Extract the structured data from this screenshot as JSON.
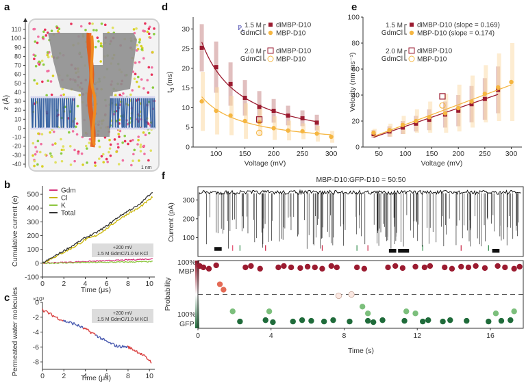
{
  "colors": {
    "dark_red": "#9b1b30",
    "dark_red_band": "#c98b8b",
    "orange": "#f5b642",
    "orange_band": "#fbd9a3",
    "gdm": "#d6337c",
    "cl": "#c9b400",
    "k": "#8dc63f",
    "total": "#333333",
    "water_red": "#d94040",
    "water_blue": "#4a5bb0",
    "green_dark": "#1f6b3a",
    "pore_grey": "#8f8f8f",
    "membrane": "#2f5c9e",
    "trace": "#111111"
  },
  "panels": {
    "a": {
      "label": "a",
      "ylabel": "z (Å)",
      "ticks": [
        "110",
        "100",
        "90",
        "80",
        "70",
        "60",
        "50",
        "40",
        "30",
        "20",
        "10",
        "0",
        "-10",
        "-20",
        "-30",
        "-40"
      ],
      "scale_text": "1 nm"
    },
    "b": {
      "label": "b",
      "annot1": "+200 mV",
      "annot2": "1.5 M GdmCl/1.0 M KCl"
    },
    "c": {
      "label": "c",
      "exp": "×10³",
      "annot1": "+200 mV",
      "annot2": "1.5 M GdmCl/1.0 M KCl"
    },
    "d": {
      "label": "d",
      "pl": "P",
      "pl_sub": "L"
    },
    "e": {
      "label": "e"
    },
    "f": {
      "label": "f",
      "top_label": "Current (pA)",
      "bottom_label": "Probability",
      "mbp": "MBP",
      "gfp": "GFP",
      "p100_top": "100%",
      "p100_bottom": "100%"
    }
  },
  "chart_data": [
    {
      "panel": "b",
      "type": "line",
      "xlabel": "Time (μs)",
      "ylabel": "Cumulative current (e)",
      "xlim": [
        0,
        10.5
      ],
      "ylim": [
        -100,
        560
      ],
      "xticks": [
        0,
        2,
        4,
        6,
        8,
        10
      ],
      "yticks": [
        -100,
        0,
        100,
        200,
        300,
        400,
        500
      ],
      "legend": "top-left",
      "series": [
        {
          "name": "Gdm",
          "x": [
            0,
            2,
            4,
            6,
            8,
            10.3
          ],
          "y": [
            0,
            6,
            12,
            18,
            24,
            32
          ]
        },
        {
          "name": "Cl",
          "x": [
            0,
            1,
            2,
            3,
            4,
            5,
            6,
            7,
            8,
            9,
            10.3
          ],
          "y": [
            0,
            40,
            80,
            120,
            170,
            200,
            250,
            310,
            360,
            400,
            480
          ]
        },
        {
          "name": "K",
          "x": [
            0,
            2,
            4,
            6,
            8,
            10.3
          ],
          "y": [
            0,
            2,
            5,
            7,
            9,
            12
          ]
        },
        {
          "name": "Total",
          "x": [
            0,
            1,
            2,
            3,
            4,
            5,
            6,
            7,
            8,
            9,
            10.3
          ],
          "y": [
            0,
            45,
            90,
            135,
            185,
            220,
            270,
            330,
            380,
            420,
            520
          ]
        }
      ]
    },
    {
      "panel": "c",
      "type": "line",
      "xlabel": "Time (μs)",
      "ylabel": "Permeated water molecules",
      "xlim": [
        0,
        10.5
      ],
      "ylim": [
        -9,
        0
      ],
      "xticks": [
        0,
        2,
        4,
        6,
        8,
        10
      ],
      "yticks": [
        -8,
        -6,
        -4,
        -2,
        0
      ],
      "series": [
        {
          "x": [
            0,
            1,
            2,
            3,
            4,
            5,
            6,
            7,
            8,
            9,
            10.2
          ],
          "y": [
            -1.0,
            -1.8,
            -2.5,
            -2.9,
            -3.6,
            -4.4,
            -5.3,
            -5.9,
            -6.0,
            -6.7,
            -8.0
          ]
        }
      ]
    },
    {
      "panel": "d",
      "type": "line",
      "xlabel": "Voltage (mV)",
      "ylabel": "t",
      "ylabel_sub": "d",
      "ylabel_unit": " (ms)",
      "xlim": [
        60,
        310
      ],
      "ylim": [
        0,
        33
      ],
      "xticks": [
        100,
        150,
        200,
        250,
        300
      ],
      "yticks": [
        0,
        5,
        10,
        15,
        20,
        25,
        30
      ],
      "legend": "top-right",
      "legend_groups": [
        {
          "conc_line1": "1.5 M",
          "conc_line2": "GdmCl",
          "items": [
            "diMBP-D10",
            "MBP-D10"
          ]
        },
        {
          "conc_line1": "2.0 M",
          "conc_line2": "GdmCl",
          "items": [
            "diMBP-D10",
            "MBP-D10"
          ]
        }
      ],
      "series": [
        {
          "name": "diMBP-D10",
          "x": [
            75,
            100,
            125,
            150,
            175,
            200,
            225,
            250,
            275
          ],
          "y": [
            25.2,
            20.3,
            16.0,
            12.5,
            10.2,
            9.2,
            8.0,
            7.3,
            6.2
          ],
          "err": [
            6,
            6.5,
            5.5,
            4.5,
            4,
            3,
            2.5,
            2,
            2
          ]
        },
        {
          "name": "MBP-D10",
          "x": [
            75,
            100,
            125,
            150,
            175,
            200,
            225,
            250,
            275,
            300
          ],
          "y": [
            11.6,
            9.2,
            8.0,
            6.6,
            6.3,
            4.8,
            4.2,
            4.0,
            3.4,
            2.6
          ],
          "err": [
            7.5,
            6,
            5,
            4.5,
            3.5,
            3,
            2.5,
            2,
            2,
            1.5
          ]
        },
        {
          "name": "diMBP-D10",
          "x": [
            175
          ],
          "y": [
            7.0
          ]
        },
        {
          "name": "MBP-D10",
          "x": [
            175
          ],
          "y": [
            3.6
          ]
        }
      ]
    },
    {
      "panel": "e",
      "type": "line",
      "xlabel": "Voltage (mV)",
      "ylabel": "Velocity (nm ms⁻¹)",
      "xlim": [
        20,
        320
      ],
      "ylim": [
        0,
        100
      ],
      "xticks": [
        50,
        100,
        150,
        200,
        250,
        300
      ],
      "yticks": [
        0,
        20,
        40,
        60,
        80,
        100
      ],
      "legend": "top-right",
      "legend_groups": [
        {
          "conc_line1": "1.5 M",
          "conc_line2": "GdmCl",
          "items": [
            "diMBP-D10 (slope = 0.169)",
            "MBP-D10 (slope = 0.174)"
          ]
        },
        {
          "conc_line1": "2.0 M",
          "conc_line2": "GdmCl",
          "items": [
            "diMBP-D10",
            "MBP-D10"
          ]
        }
      ],
      "series": [
        {
          "name": "diMBP-D10",
          "x": [
            40,
            70,
            95,
            120,
            145,
            175,
            200,
            225,
            250,
            275
          ],
          "y": [
            10,
            12,
            15,
            18,
            21,
            25,
            28,
            33,
            37,
            44
          ],
          "err": [
            3,
            4,
            5,
            6,
            8,
            10,
            12,
            14,
            16,
            18
          ]
        },
        {
          "name": "MBP-D10",
          "x": [
            40,
            70,
            95,
            120,
            145,
            175,
            200,
            225,
            250,
            275,
            300
          ],
          "y": [
            11,
            13,
            17,
            20,
            23,
            26,
            30,
            35,
            41,
            46,
            50
          ],
          "err": [
            3,
            5,
            7,
            9,
            12,
            15,
            18,
            20,
            22,
            26,
            30
          ]
        },
        {
          "name": "diMBP-D10",
          "x": [
            170
          ],
          "y": [
            39
          ]
        },
        {
          "name": "MBP-D10",
          "x": [
            170
          ],
          "y": [
            32
          ]
        }
      ]
    },
    {
      "panel": "f",
      "type": "scatter",
      "title": "MBP-D10:GFP-D10 = 50:50",
      "xlabel": "Time (s)",
      "xlim": [
        0,
        17.8
      ],
      "xticks": [
        0,
        4,
        8,
        12,
        16
      ],
      "current_yticks": [
        0,
        100,
        200,
        300
      ],
      "current_ylim": [
        0,
        370
      ],
      "points": {
        "mbp": [
          [
            0.1,
            0.92
          ],
          [
            0.3,
            0.9
          ],
          [
            0.6,
            0.88
          ],
          [
            1.0,
            0.93
          ],
          [
            2.6,
            0.9
          ],
          [
            2.9,
            0.92
          ],
          [
            3.4,
            0.88
          ],
          [
            4.4,
            0.9
          ],
          [
            4.7,
            0.92
          ],
          [
            5.1,
            0.9
          ],
          [
            5.6,
            0.89
          ],
          [
            6.0,
            0.91
          ],
          [
            6.4,
            0.9
          ],
          [
            6.8,
            0.88
          ],
          [
            7.3,
            0.92
          ],
          [
            7.6,
            0.9
          ],
          [
            8.7,
            0.9
          ],
          [
            9.1,
            0.88
          ],
          [
            10.4,
            0.9
          ],
          [
            10.8,
            0.92
          ],
          [
            11.2,
            0.89
          ],
          [
            11.9,
            0.91
          ],
          [
            12.4,
            0.9
          ],
          [
            12.7,
            0.92
          ],
          [
            13.5,
            0.9
          ],
          [
            13.9,
            0.88
          ],
          [
            14.4,
            0.91
          ],
          [
            14.8,
            0.9
          ],
          [
            15.2,
            0.92
          ],
          [
            15.7,
            0.89
          ],
          [
            16.4,
            0.92
          ],
          [
            16.8,
            0.9
          ],
          [
            17.3,
            0.88
          ],
          [
            17.6,
            0.91
          ]
        ],
        "mbp_light": [
          [
            1.2,
            0.65
          ],
          [
            1.4,
            0.57
          ]
        ],
        "gfp": [
          [
            2.3,
            0.1
          ],
          [
            3.7,
            0.12
          ],
          [
            4.1,
            0.09
          ],
          [
            5.2,
            0.1
          ],
          [
            5.7,
            0.12
          ],
          [
            6.2,
            0.11
          ],
          [
            6.9,
            0.1
          ],
          [
            7.4,
            0.12
          ],
          [
            8.3,
            0.1
          ],
          [
            9.3,
            0.11
          ],
          [
            9.6,
            0.09
          ],
          [
            10.1,
            0.12
          ],
          [
            11.3,
            0.11
          ],
          [
            12.3,
            0.1
          ],
          [
            12.6,
            0.12
          ],
          [
            13.4,
            0.1
          ],
          [
            13.8,
            0.12
          ],
          [
            14.7,
            0.11
          ],
          [
            15.9,
            0.1
          ],
          [
            16.6,
            0.11
          ],
          [
            17.1,
            0.12
          ]
        ],
        "gfp_light": [
          [
            1.9,
            0.25
          ],
          [
            3.9,
            0.25
          ],
          [
            9.0,
            0.32
          ],
          [
            9.3,
            0.22
          ],
          [
            11.4,
            0.25
          ],
          [
            11.9,
            0.22
          ],
          [
            16.3,
            0.22
          ],
          [
            17.3,
            0.25
          ]
        ],
        "neutral": [
          [
            7.7,
            0.48
          ],
          [
            8.4,
            0.5
          ]
        ]
      },
      "blockades": [
        {
          "t": 0.9,
          "w": 0.4,
          "level": 30
        },
        {
          "t": 10.45,
          "w": 0.4,
          "level": 20
        },
        {
          "t": 10.95,
          "w": 0.6,
          "level": 20
        },
        {
          "t": 16.1,
          "w": 0.4,
          "level": 20
        }
      ]
    }
  ]
}
